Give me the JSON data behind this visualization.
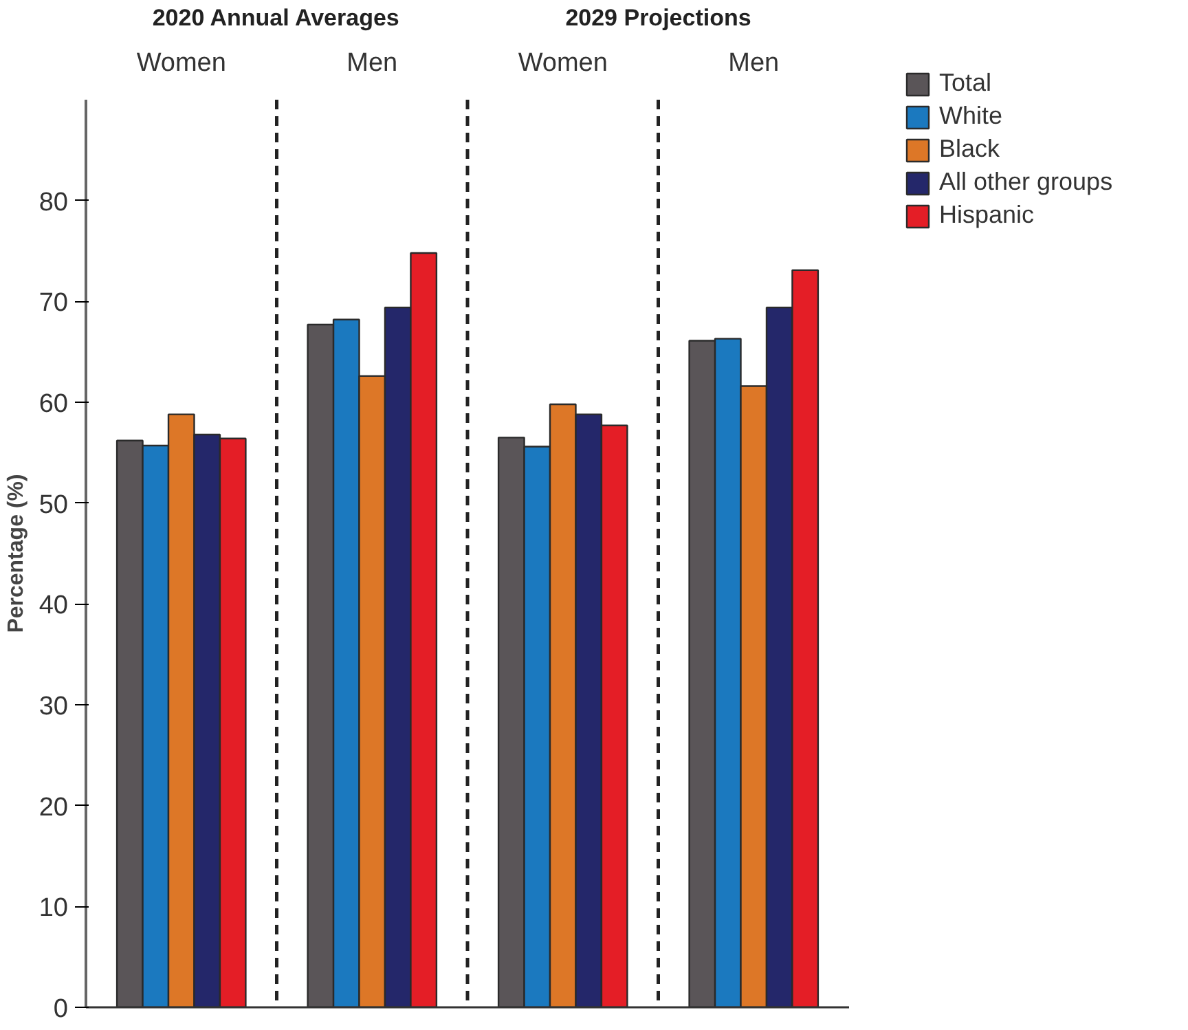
{
  "chart_data": {
    "type": "bar",
    "categories": [
      "Women",
      "Men",
      "Women",
      "Men"
    ],
    "ylabel": "Percentage (%)",
    "ylim": [
      0,
      90
    ],
    "yticks": [
      0,
      10,
      20,
      30,
      40,
      50,
      60,
      70,
      80
    ],
    "grid": false,
    "legend": "top right",
    "annotations": [
      "2020 Annual Averages",
      "2029 Projections"
    ],
    "series": [
      {
        "name": "Total",
        "color": "#5a5558",
        "values": [
          56.2,
          67.7,
          56.5,
          66.1
        ]
      },
      {
        "name": "White",
        "color": "#1b79bf",
        "values": [
          55.7,
          68.2,
          55.6,
          66.3
        ]
      },
      {
        "name": "Black",
        "color": "#dd7727",
        "values": [
          58.8,
          62.6,
          59.8,
          61.6
        ]
      },
      {
        "name": "All other groups",
        "color": "#24276a",
        "values": [
          56.8,
          69.4,
          58.8,
          69.4
        ]
      },
      {
        "name": "Hispanic",
        "color": "#e41e26",
        "values": [
          56.4,
          74.8,
          57.7,
          73.1
        ]
      }
    ]
  }
}
